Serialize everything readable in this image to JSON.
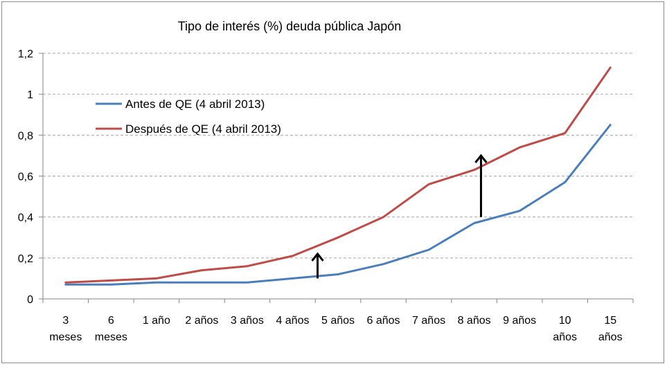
{
  "chart_data": {
    "type": "line",
    "title": "Tipo de interés (%) deuda pública Japón",
    "xlabel": "",
    "ylabel": "",
    "categories": [
      [
        "3",
        "meses"
      ],
      [
        "6",
        "meses"
      ],
      [
        "1 año"
      ],
      [
        "2 años"
      ],
      [
        "3 años"
      ],
      [
        "4 años"
      ],
      [
        "5 años"
      ],
      [
        "6 años"
      ],
      [
        "7 años"
      ],
      [
        "8 años"
      ],
      [
        "9 años"
      ],
      [
        "10",
        "años"
      ],
      [
        "15",
        "años"
      ]
    ],
    "ylim": [
      0,
      1.2
    ],
    "yticks": [
      "0",
      "0,2",
      "0,4",
      "0,6",
      "0,8",
      "1",
      "1,2"
    ],
    "grid": "horizontal-dashed",
    "legend_position": "upper-left",
    "series": [
      {
        "name": "Antes de QE (4 abril 2013)",
        "color": "#4a7ebb",
        "values": [
          0.07,
          0.07,
          0.08,
          0.08,
          0.08,
          0.1,
          0.12,
          0.17,
          0.24,
          0.37,
          0.43,
          0.57,
          0.85
        ]
      },
      {
        "name": "Después de QE (4 abril 2013)",
        "color": "#be4b48",
        "values": [
          0.08,
          0.09,
          0.1,
          0.14,
          0.16,
          0.21,
          0.3,
          0.4,
          0.56,
          0.63,
          0.74,
          0.81,
          1.13
        ]
      }
    ],
    "annotations": [
      {
        "type": "arrow-up",
        "x_between": [
          "4 años",
          "5 años"
        ],
        "from": 0.1,
        "to": 0.22
      },
      {
        "type": "arrow-up",
        "x_between": [
          "8 años",
          "9 años"
        ],
        "from": 0.4,
        "to": 0.7
      }
    ]
  }
}
